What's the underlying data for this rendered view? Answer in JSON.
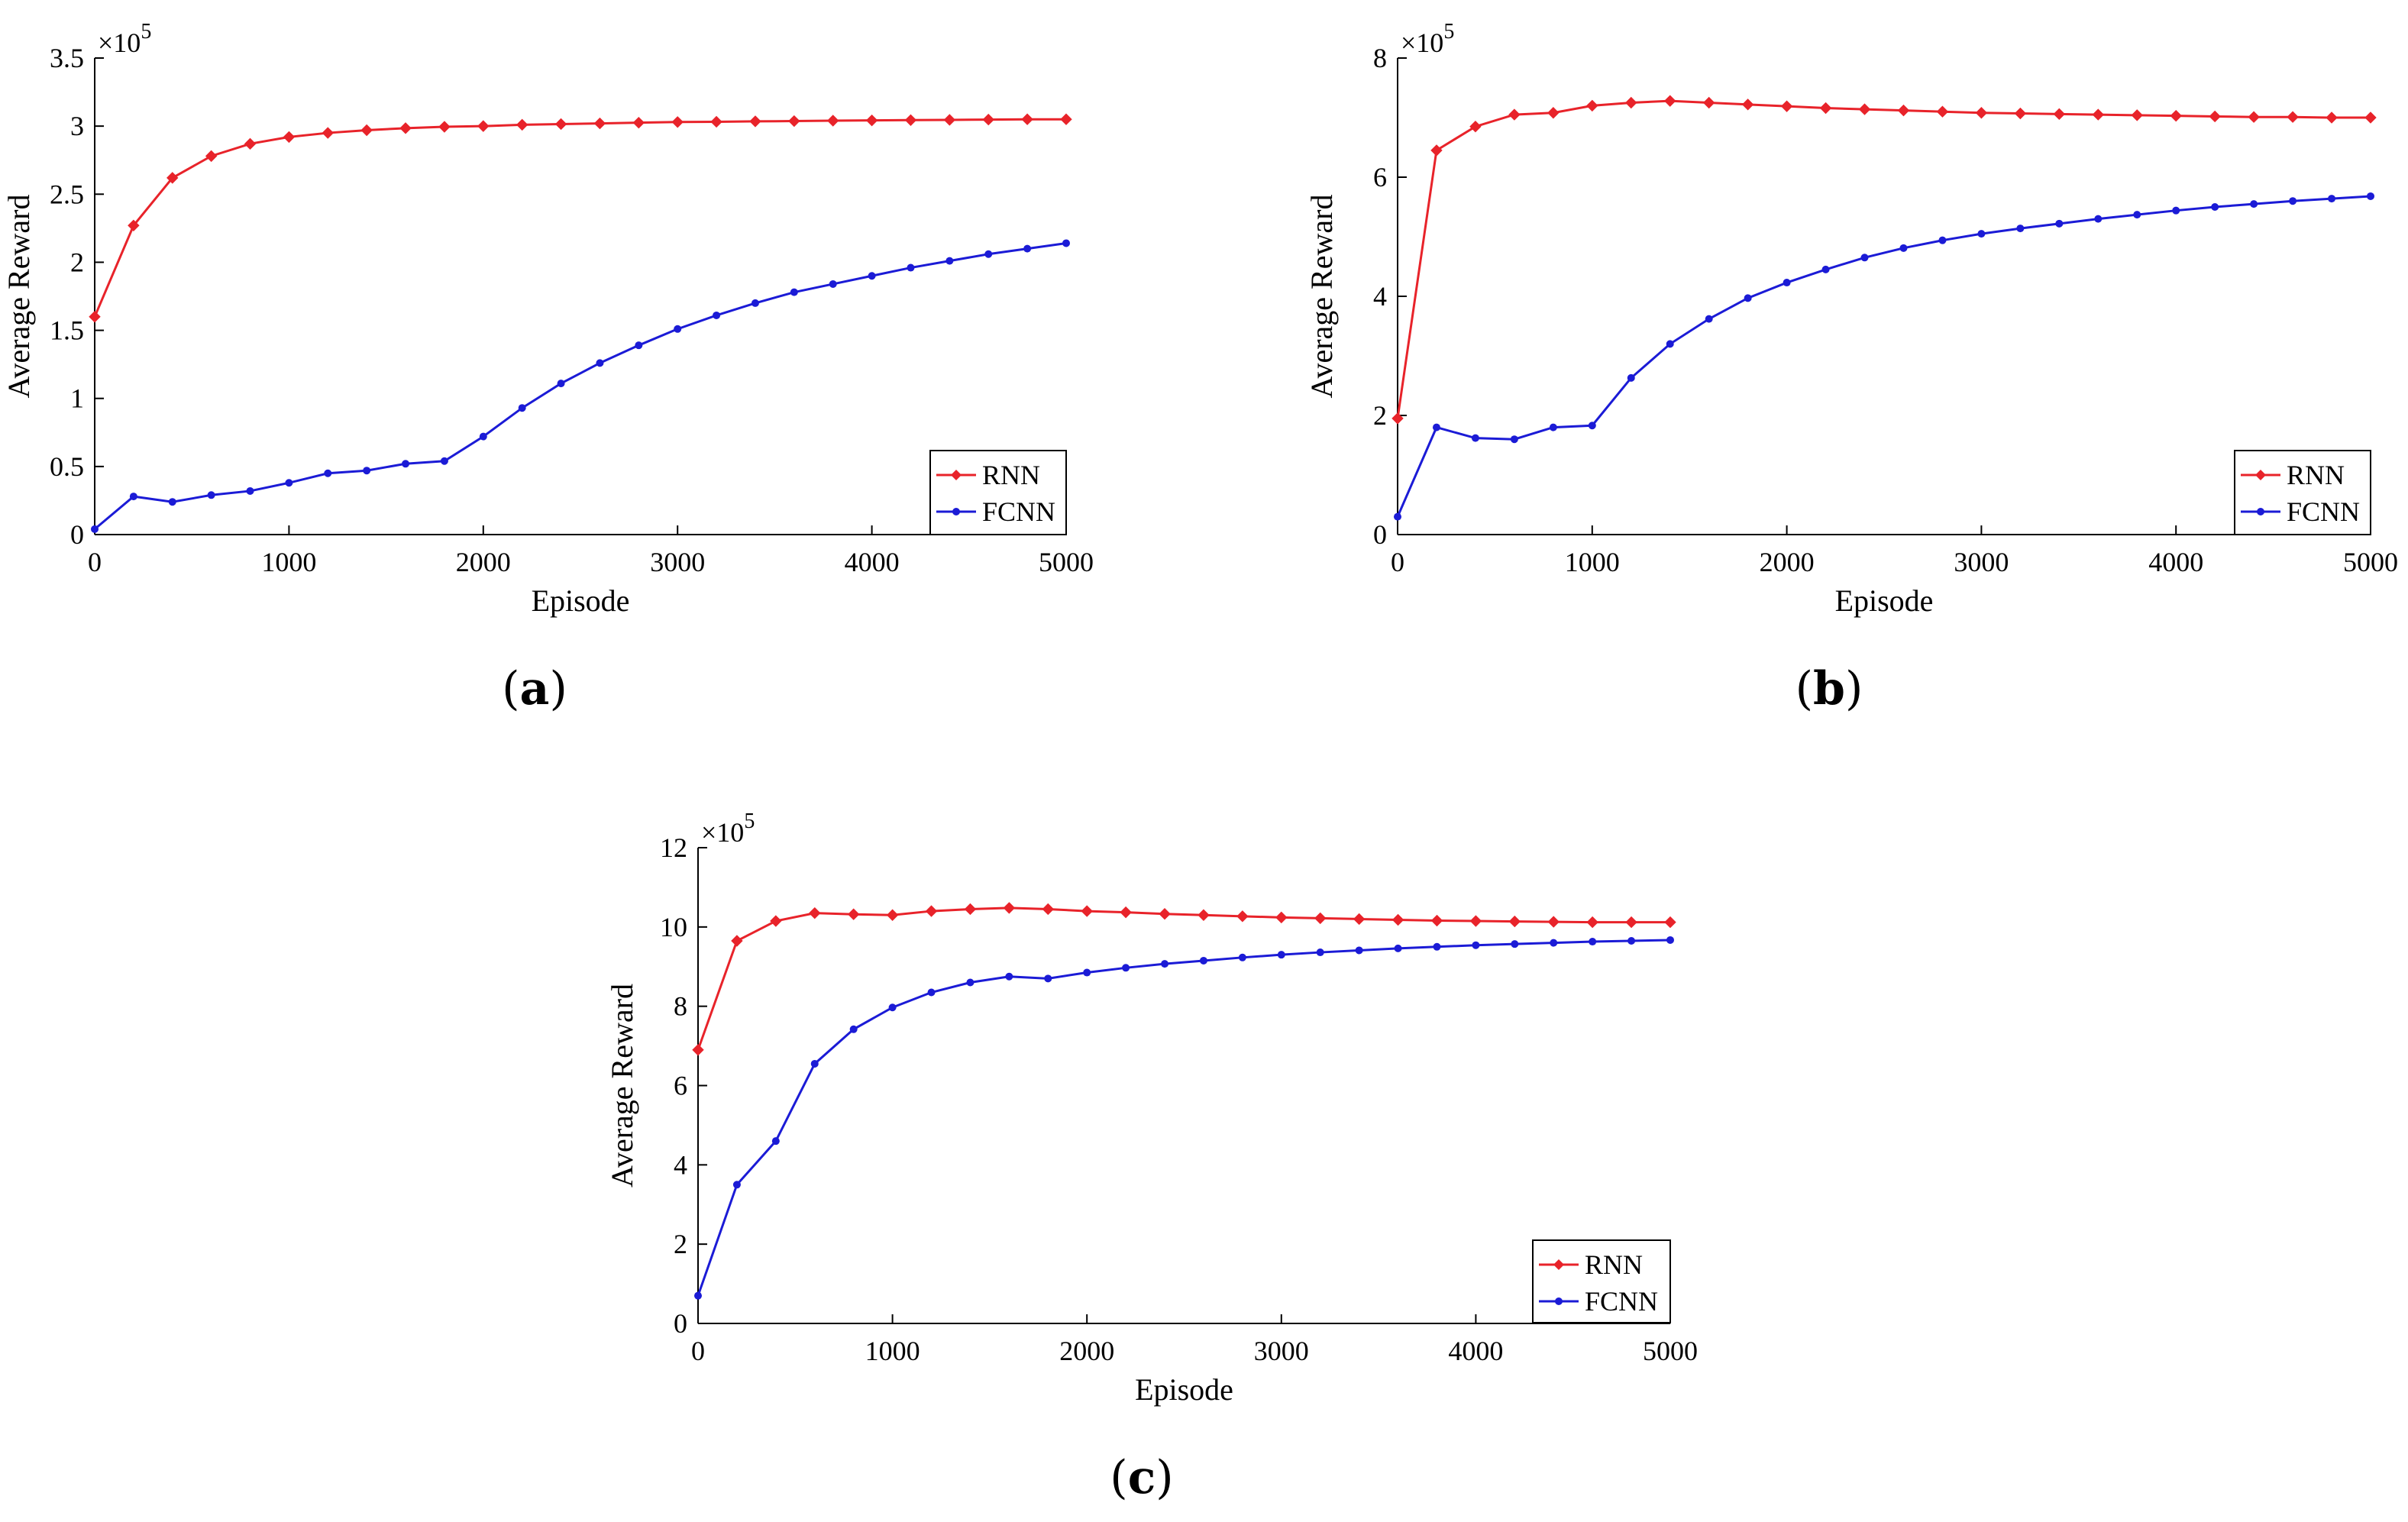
{
  "chart_data": [
    {
      "type": "line",
      "panel": "a",
      "caption_letter": "a",
      "xlabel": "Episode",
      "ylabel": "Average Reward",
      "exponent_label": "×10",
      "exponent_power": "5",
      "xlim": [
        0,
        5000
      ],
      "ylim": [
        0,
        3.5
      ],
      "xticks": [
        0,
        1000,
        2000,
        3000,
        4000,
        5000
      ],
      "yticks": [
        0,
        0.5,
        1,
        1.5,
        2,
        2.5,
        3,
        3.5
      ],
      "ytick_labels": [
        "0",
        "0.5",
        "1",
        "1.5",
        "2",
        "2.5",
        "3",
        "3.5"
      ],
      "legend": [
        "RNN",
        "FCNN"
      ],
      "x": [
        0,
        200,
        400,
        600,
        800,
        1000,
        1200,
        1400,
        1600,
        1800,
        2000,
        2200,
        2400,
        2600,
        2800,
        3000,
        3200,
        3400,
        3600,
        3800,
        4000,
        4200,
        4400,
        4600,
        4800,
        5000
      ],
      "series": [
        {
          "name": "RNN",
          "color": "#e8232a",
          "marker": "diamond",
          "values": [
            1.6,
            2.27,
            2.62,
            2.78,
            2.87,
            2.92,
            2.95,
            2.97,
            2.985,
            2.995,
            3.0,
            3.01,
            3.015,
            3.02,
            3.025,
            3.03,
            3.032,
            3.035,
            3.037,
            3.04,
            3.042,
            3.044,
            3.046,
            3.048,
            3.05,
            3.05
          ]
        },
        {
          "name": "FCNN",
          "color": "#1b1bd6",
          "marker": "dot",
          "values": [
            0.04,
            0.28,
            0.24,
            0.29,
            0.32,
            0.38,
            0.45,
            0.47,
            0.52,
            0.54,
            0.72,
            0.93,
            1.11,
            1.26,
            1.39,
            1.51,
            1.61,
            1.7,
            1.78,
            1.84,
            1.9,
            1.96,
            2.01,
            2.06,
            2.1,
            2.14
          ]
        }
      ]
    },
    {
      "type": "line",
      "panel": "b",
      "caption_letter": "b",
      "xlabel": "Episode",
      "ylabel": "Average Reward",
      "exponent_label": "×10",
      "exponent_power": "5",
      "xlim": [
        0,
        5000
      ],
      "ylim": [
        0,
        8
      ],
      "xticks": [
        0,
        1000,
        2000,
        3000,
        4000,
        5000
      ],
      "yticks": [
        0,
        2,
        4,
        6,
        8
      ],
      "ytick_labels": [
        "0",
        "2",
        "4",
        "6",
        "8"
      ],
      "legend": [
        "RNN",
        "FCNN"
      ],
      "x": [
        0,
        200,
        400,
        600,
        800,
        1000,
        1200,
        1400,
        1600,
        1800,
        2000,
        2200,
        2400,
        2600,
        2800,
        3000,
        3200,
        3400,
        3600,
        3800,
        4000,
        4200,
        4400,
        4600,
        4800,
        5000
      ],
      "series": [
        {
          "name": "RNN",
          "color": "#e8232a",
          "marker": "diamond",
          "values": [
            1.95,
            6.45,
            6.85,
            7.05,
            7.08,
            7.2,
            7.25,
            7.28,
            7.25,
            7.22,
            7.19,
            7.16,
            7.14,
            7.12,
            7.1,
            7.08,
            7.07,
            7.06,
            7.05,
            7.04,
            7.03,
            7.02,
            7.01,
            7.01,
            7.0,
            7.0
          ]
        },
        {
          "name": "FCNN",
          "color": "#1b1bd6",
          "marker": "dot",
          "values": [
            0.3,
            1.8,
            1.62,
            1.6,
            1.8,
            1.83,
            2.63,
            3.2,
            3.62,
            3.97,
            4.23,
            4.45,
            4.65,
            4.81,
            4.94,
            5.05,
            5.14,
            5.22,
            5.3,
            5.37,
            5.44,
            5.5,
            5.55,
            5.6,
            5.64,
            5.68
          ]
        }
      ]
    },
    {
      "type": "line",
      "panel": "c",
      "caption_letter": "c",
      "xlabel": "Episode",
      "ylabel": "Average Reward",
      "exponent_label": "×10",
      "exponent_power": "5",
      "xlim": [
        0,
        5000
      ],
      "ylim": [
        0,
        12
      ],
      "xticks": [
        0,
        1000,
        2000,
        3000,
        4000,
        5000
      ],
      "yticks": [
        0,
        2,
        4,
        6,
        8,
        10,
        12
      ],
      "ytick_labels": [
        "0",
        "2",
        "4",
        "6",
        "8",
        "10",
        "12"
      ],
      "legend": [
        "RNN",
        "FCNN"
      ],
      "x": [
        0,
        200,
        400,
        600,
        800,
        1000,
        1200,
        1400,
        1600,
        1800,
        2000,
        2200,
        2400,
        2600,
        2800,
        3000,
        3200,
        3400,
        3600,
        3800,
        4000,
        4200,
        4400,
        4600,
        4800,
        5000
      ],
      "series": [
        {
          "name": "RNN",
          "color": "#e8232a",
          "marker": "diamond",
          "values": [
            6.9,
            9.65,
            10.15,
            10.35,
            10.32,
            10.3,
            10.4,
            10.45,
            10.48,
            10.45,
            10.4,
            10.37,
            10.33,
            10.3,
            10.27,
            10.24,
            10.22,
            10.2,
            10.18,
            10.16,
            10.15,
            10.14,
            10.13,
            10.12,
            10.12,
            10.12
          ]
        },
        {
          "name": "FCNN",
          "color": "#1b1bd6",
          "marker": "dot",
          "values": [
            0.7,
            3.5,
            4.6,
            6.55,
            7.42,
            7.97,
            8.35,
            8.6,
            8.75,
            8.7,
            8.85,
            8.97,
            9.07,
            9.15,
            9.23,
            9.3,
            9.36,
            9.41,
            9.46,
            9.5,
            9.54,
            9.57,
            9.6,
            9.63,
            9.65,
            9.67
          ]
        }
      ]
    }
  ]
}
